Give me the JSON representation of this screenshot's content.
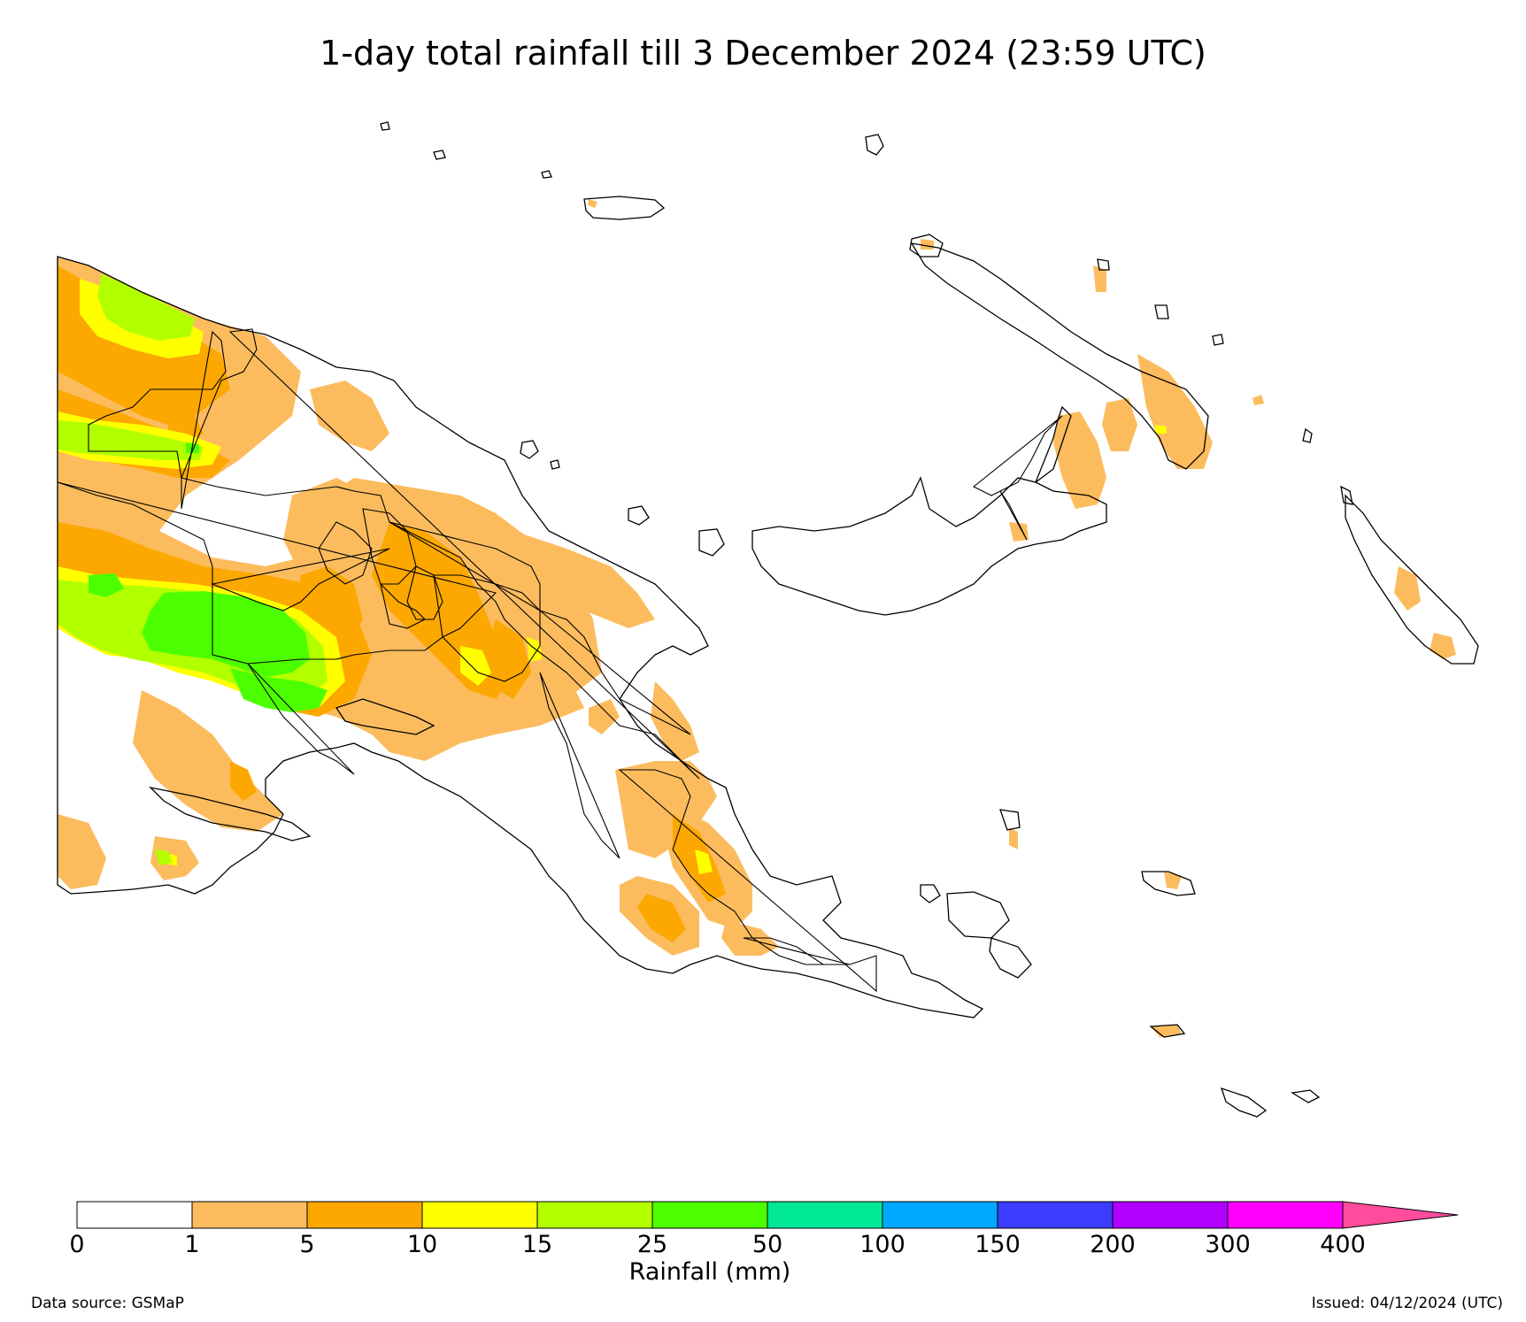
{
  "title": "1-day total rainfall till 3 December 2024 (23:59 UTC)",
  "legend": {
    "label": "Rainfall (mm)",
    "ticks": [
      "0",
      "1",
      "5",
      "10",
      "15",
      "25",
      "50",
      "100",
      "150",
      "200",
      "300",
      "400"
    ],
    "bins": [
      {
        "from": "0",
        "to": "1",
        "color": "#ffffff"
      },
      {
        "from": "1",
        "to": "5",
        "color": "#fcbc5e"
      },
      {
        "from": "5",
        "to": "10",
        "color": "#fca800"
      },
      {
        "from": "10",
        "to": "15",
        "color": "#ffff00"
      },
      {
        "from": "15",
        "to": "25",
        "color": "#b2ff00"
      },
      {
        "from": "25",
        "to": "50",
        "color": "#4cff00"
      },
      {
        "from": "50",
        "to": "100",
        "color": "#00e896"
      },
      {
        "from": "100",
        "to": "150",
        "color": "#00a8ff"
      },
      {
        "from": "150",
        "to": "200",
        "color": "#3c3cff"
      },
      {
        "from": "200",
        "to": "300",
        "color": "#b000ff"
      },
      {
        "from": "300",
        "to": "400",
        "color": "#ff00ff"
      }
    ],
    "overflow_color": "#ff4c9c"
  },
  "footer": {
    "source": "Data source: GSMaP",
    "issued": "Issued: 04/12/2024 (UTC)"
  },
  "colors": {
    "land_outline": "#000000",
    "rain_1_5": "#fcbc5e",
    "rain_5_10": "#fca800",
    "rain_10_15": "#ffff00",
    "rain_15_25": "#b2ff00",
    "rain_25_50": "#4cff00"
  }
}
